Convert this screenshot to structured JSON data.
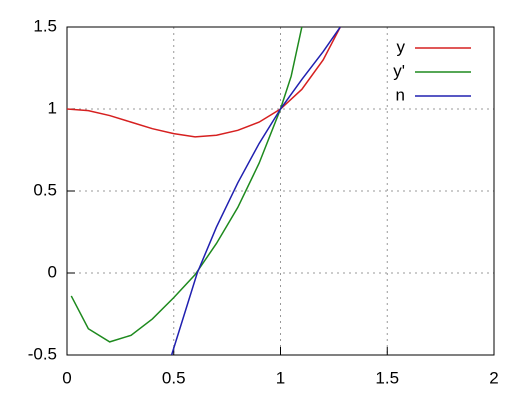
{
  "chart_data": {
    "type": "line",
    "xlim": [
      0,
      2
    ],
    "xticks": [
      0,
      0.5,
      1,
      1.5,
      2
    ],
    "ylim": [
      -0.5,
      1.5
    ],
    "yticks": [
      -0.5,
      0,
      0.5,
      1,
      1.5
    ],
    "grid": true,
    "legend": "top-right",
    "series": [
      {
        "name": "y",
        "color": "#d62020",
        "x": [
          0,
          0.1,
          0.2,
          0.3,
          0.4,
          0.5,
          0.6,
          0.7,
          0.8,
          0.9,
          1.0,
          1.1,
          1.2,
          1.28
        ],
        "values": [
          1.0,
          0.99,
          0.96,
          0.92,
          0.88,
          0.85,
          0.83,
          0.84,
          0.87,
          0.92,
          1.0,
          1.12,
          1.3,
          1.5
        ]
      },
      {
        "name": "y'",
        "color": "#1e8a1e",
        "x": [
          0.02,
          0.1,
          0.2,
          0.3,
          0.4,
          0.5,
          0.6,
          0.7,
          0.8,
          0.9,
          1.0,
          1.05,
          1.1
        ],
        "values": [
          -0.14,
          -0.34,
          -0.42,
          -0.38,
          -0.28,
          -0.15,
          -0.01,
          0.18,
          0.4,
          0.67,
          1.0,
          1.2,
          1.5
        ]
      },
      {
        "name": "n",
        "color": "#2020b0",
        "x": [
          0.49,
          0.55,
          0.61,
          0.7,
          0.8,
          0.9,
          1.0,
          1.1,
          1.2,
          1.28
        ],
        "values": [
          -0.5,
          -0.25,
          0,
          0.28,
          0.55,
          0.79,
          1.0,
          1.18,
          1.35,
          1.5
        ]
      }
    ]
  }
}
